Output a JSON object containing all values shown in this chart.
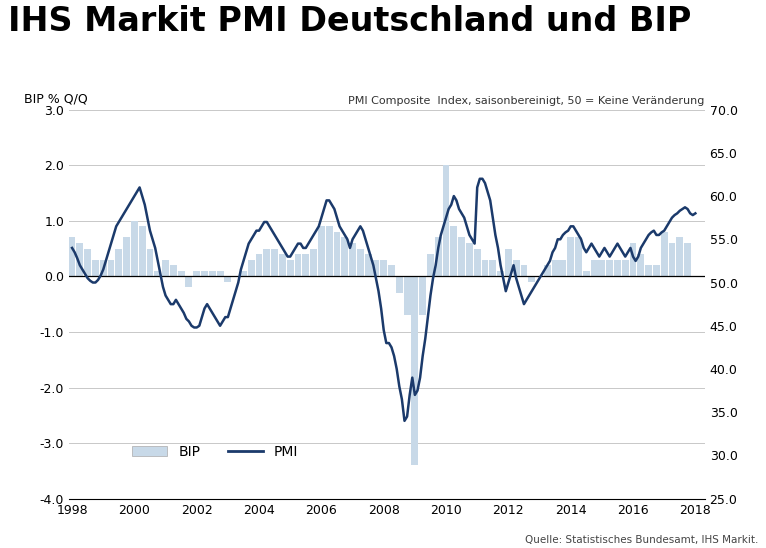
{
  "title": "IHS Markit PMI Deutschland und BIP",
  "left_ylabel": "BIP % Q/Q",
  "right_annotation": "PMI Composite  Index, saisonbereinigt, 50 = Keine Veränderung",
  "source": "Quelle: Statistisches Bundesamt, IHS Markit.",
  "left_ylim": [
    -4.0,
    3.0
  ],
  "right_ylim": [
    25.0,
    70.0
  ],
  "xlim_start": 1997.9,
  "xlim_end": 2018.3,
  "left_yticks": [
    -4.0,
    -3.0,
    -2.0,
    -1.0,
    0.0,
    1.0,
    2.0,
    3.0
  ],
  "right_yticks": [
    25.0,
    30.0,
    35.0,
    40.0,
    45.0,
    50.0,
    55.0,
    60.0,
    65.0,
    70.0
  ],
  "xticks": [
    1998,
    2000,
    2002,
    2004,
    2006,
    2008,
    2010,
    2012,
    2014,
    2016,
    2018
  ],
  "bip_color": "#c8d9e8",
  "pmi_color": "#1b3a6b",
  "background_color": "#ffffff",
  "grid_color": "#c8c8c8",
  "title_fontsize": 24,
  "axis_label_fontsize": 9,
  "tick_fontsize": 9,
  "legend_fontsize": 10,
  "bip_quarters": [
    1998.0,
    1998.25,
    1998.5,
    1998.75,
    1999.0,
    1999.25,
    1999.5,
    1999.75,
    2000.0,
    2000.25,
    2000.5,
    2000.75,
    2001.0,
    2001.25,
    2001.5,
    2001.75,
    2002.0,
    2002.25,
    2002.5,
    2002.75,
    2003.0,
    2003.25,
    2003.5,
    2003.75,
    2004.0,
    2004.25,
    2004.5,
    2004.75,
    2005.0,
    2005.25,
    2005.5,
    2005.75,
    2006.0,
    2006.25,
    2006.5,
    2006.75,
    2007.0,
    2007.25,
    2007.5,
    2007.75,
    2008.0,
    2008.25,
    2008.5,
    2008.75,
    2009.0,
    2009.25,
    2009.5,
    2009.75,
    2010.0,
    2010.25,
    2010.5,
    2010.75,
    2011.0,
    2011.25,
    2011.5,
    2011.75,
    2012.0,
    2012.25,
    2012.5,
    2012.75,
    2013.0,
    2013.25,
    2013.5,
    2013.75,
    2014.0,
    2014.25,
    2014.5,
    2014.75,
    2015.0,
    2015.25,
    2015.5,
    2015.75,
    2016.0,
    2016.25,
    2016.5,
    2016.75,
    2017.0,
    2017.25,
    2017.5,
    2017.75
  ],
  "bip_values": [
    0.7,
    0.6,
    0.5,
    0.3,
    0.3,
    0.3,
    0.5,
    0.7,
    1.0,
    0.9,
    0.5,
    0.1,
    0.3,
    0.2,
    0.1,
    -0.2,
    0.1,
    0.1,
    0.1,
    0.1,
    -0.1,
    0.0,
    0.1,
    0.3,
    0.4,
    0.5,
    0.5,
    0.4,
    0.3,
    0.4,
    0.4,
    0.5,
    0.9,
    0.9,
    0.8,
    0.7,
    0.6,
    0.5,
    0.4,
    0.3,
    0.3,
    0.2,
    -0.3,
    -0.7,
    -3.4,
    -0.7,
    0.4,
    0.7,
    2.0,
    0.9,
    0.7,
    0.6,
    0.5,
    0.3,
    0.3,
    0.1,
    0.5,
    0.3,
    0.2,
    -0.1,
    0.0,
    0.2,
    0.3,
    0.3,
    0.7,
    0.7,
    0.1,
    0.3,
    0.3,
    0.3,
    0.3,
    0.3,
    0.6,
    0.4,
    0.2,
    0.2,
    0.8,
    0.6,
    0.7,
    0.6
  ],
  "pmi_months": [
    1998.0,
    1998.083,
    1998.167,
    1998.25,
    1998.333,
    1998.417,
    1998.5,
    1998.583,
    1998.667,
    1998.75,
    1998.833,
    1998.917,
    1999.0,
    1999.083,
    1999.167,
    1999.25,
    1999.333,
    1999.417,
    1999.5,
    1999.583,
    1999.667,
    1999.75,
    1999.833,
    1999.917,
    2000.0,
    2000.083,
    2000.167,
    2000.25,
    2000.333,
    2000.417,
    2000.5,
    2000.583,
    2000.667,
    2000.75,
    2000.833,
    2000.917,
    2001.0,
    2001.083,
    2001.167,
    2001.25,
    2001.333,
    2001.417,
    2001.5,
    2001.583,
    2001.667,
    2001.75,
    2001.833,
    2001.917,
    2002.0,
    2002.083,
    2002.167,
    2002.25,
    2002.333,
    2002.417,
    2002.5,
    2002.583,
    2002.667,
    2002.75,
    2002.833,
    2002.917,
    2003.0,
    2003.083,
    2003.167,
    2003.25,
    2003.333,
    2003.417,
    2003.5,
    2003.583,
    2003.667,
    2003.75,
    2003.833,
    2003.917,
    2004.0,
    2004.083,
    2004.167,
    2004.25,
    2004.333,
    2004.417,
    2004.5,
    2004.583,
    2004.667,
    2004.75,
    2004.833,
    2004.917,
    2005.0,
    2005.083,
    2005.167,
    2005.25,
    2005.333,
    2005.417,
    2005.5,
    2005.583,
    2005.667,
    2005.75,
    2005.833,
    2005.917,
    2006.0,
    2006.083,
    2006.167,
    2006.25,
    2006.333,
    2006.417,
    2006.5,
    2006.583,
    2006.667,
    2006.75,
    2006.833,
    2006.917,
    2007.0,
    2007.083,
    2007.167,
    2007.25,
    2007.333,
    2007.417,
    2007.5,
    2007.583,
    2007.667,
    2007.75,
    2007.833,
    2007.917,
    2008.0,
    2008.083,
    2008.167,
    2008.25,
    2008.333,
    2008.417,
    2008.5,
    2008.583,
    2008.667,
    2008.75,
    2008.833,
    2008.917,
    2009.0,
    2009.083,
    2009.167,
    2009.25,
    2009.333,
    2009.417,
    2009.5,
    2009.583,
    2009.667,
    2009.75,
    2009.833,
    2009.917,
    2010.0,
    2010.083,
    2010.167,
    2010.25,
    2010.333,
    2010.417,
    2010.5,
    2010.583,
    2010.667,
    2010.75,
    2010.833,
    2010.917,
    2011.0,
    2011.083,
    2011.167,
    2011.25,
    2011.333,
    2011.417,
    2011.5,
    2011.583,
    2011.667,
    2011.75,
    2011.833,
    2011.917,
    2012.0,
    2012.083,
    2012.167,
    2012.25,
    2012.333,
    2012.417,
    2012.5,
    2012.583,
    2012.667,
    2012.75,
    2012.833,
    2012.917,
    2013.0,
    2013.083,
    2013.167,
    2013.25,
    2013.333,
    2013.417,
    2013.5,
    2013.583,
    2013.667,
    2013.75,
    2013.833,
    2013.917,
    2014.0,
    2014.083,
    2014.167,
    2014.25,
    2014.333,
    2014.417,
    2014.5,
    2014.583,
    2014.667,
    2014.75,
    2014.833,
    2014.917,
    2015.0,
    2015.083,
    2015.167,
    2015.25,
    2015.333,
    2015.417,
    2015.5,
    2015.583,
    2015.667,
    2015.75,
    2015.833,
    2015.917,
    2016.0,
    2016.083,
    2016.167,
    2016.25,
    2016.333,
    2016.417,
    2016.5,
    2016.583,
    2016.667,
    2016.75,
    2016.833,
    2016.917,
    2017.0,
    2017.083,
    2017.167,
    2017.25,
    2017.333,
    2017.417,
    2017.5,
    2017.583,
    2017.667,
    2017.75,
    2017.833,
    2017.917,
    2018.0
  ],
  "pmi_values": [
    54.0,
    53.5,
    52.8,
    52.0,
    51.5,
    51.0,
    50.5,
    50.2,
    50.0,
    50.0,
    50.3,
    50.8,
    51.5,
    52.5,
    53.5,
    54.5,
    55.5,
    56.5,
    57.0,
    57.5,
    58.0,
    58.5,
    59.0,
    59.5,
    60.0,
    60.5,
    61.0,
    60.0,
    59.0,
    57.5,
    56.0,
    55.0,
    54.0,
    52.5,
    51.0,
    49.5,
    48.5,
    48.0,
    47.5,
    47.5,
    48.0,
    47.5,
    47.0,
    46.5,
    45.8,
    45.5,
    45.0,
    44.8,
    44.8,
    45.0,
    46.0,
    47.0,
    47.5,
    47.0,
    46.5,
    46.0,
    45.5,
    45.0,
    45.5,
    46.0,
    46.0,
    47.0,
    48.0,
    49.0,
    50.0,
    51.5,
    52.5,
    53.5,
    54.5,
    55.0,
    55.5,
    56.0,
    56.0,
    56.5,
    57.0,
    57.0,
    56.5,
    56.0,
    55.5,
    55.0,
    54.5,
    54.0,
    53.5,
    53.0,
    53.0,
    53.5,
    54.0,
    54.5,
    54.5,
    54.0,
    54.0,
    54.5,
    55.0,
    55.5,
    56.0,
    56.5,
    57.5,
    58.5,
    59.5,
    59.5,
    59.0,
    58.5,
    57.5,
    56.5,
    56.0,
    55.5,
    55.0,
    54.0,
    55.0,
    55.5,
    56.0,
    56.5,
    56.0,
    55.0,
    54.0,
    53.0,
    52.0,
    50.5,
    49.0,
    47.0,
    44.5,
    43.0,
    43.0,
    42.5,
    41.5,
    40.0,
    38.0,
    36.5,
    34.0,
    34.5,
    37.0,
    39.0,
    37.0,
    37.5,
    39.0,
    41.5,
    43.5,
    46.0,
    48.5,
    50.5,
    52.0,
    54.0,
    55.5,
    56.5,
    57.5,
    58.5,
    59.0,
    60.0,
    59.5,
    58.5,
    58.0,
    57.5,
    56.5,
    55.5,
    55.0,
    54.5,
    61.0,
    62.0,
    62.0,
    61.5,
    60.5,
    59.5,
    57.5,
    55.5,
    54.0,
    52.0,
    50.5,
    49.0,
    50.0,
    51.0,
    52.0,
    50.5,
    49.5,
    48.5,
    47.5,
    48.0,
    48.5,
    49.0,
    49.5,
    50.0,
    50.5,
    51.0,
    51.5,
    52.0,
    52.5,
    53.5,
    54.0,
    55.0,
    55.0,
    55.5,
    55.8,
    56.0,
    56.5,
    56.5,
    56.0,
    55.5,
    55.0,
    54.0,
    53.5,
    54.0,
    54.5,
    54.0,
    53.5,
    53.0,
    53.5,
    54.0,
    53.5,
    53.0,
    53.5,
    54.0,
    54.5,
    54.0,
    53.5,
    53.0,
    53.5,
    54.0,
    53.0,
    52.5,
    53.0,
    54.0,
    54.5,
    55.0,
    55.5,
    55.8,
    56.0,
    55.5,
    55.5,
    55.8,
    56.0,
    56.5,
    57.0,
    57.5,
    57.8,
    58.0,
    58.3,
    58.5,
    58.7,
    58.5,
    58.0,
    57.8,
    58.0
  ]
}
